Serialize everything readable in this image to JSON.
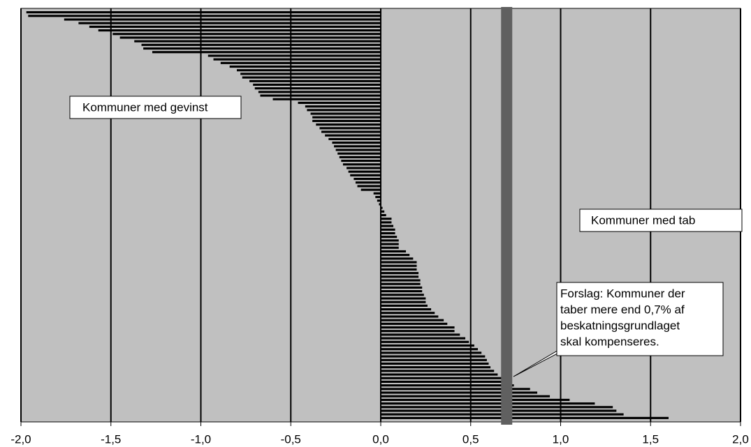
{
  "chart_data": {
    "type": "hbar",
    "values": [
      -1.97,
      -1.96,
      -1.76,
      -1.68,
      -1.62,
      -1.57,
      -1.49,
      -1.45,
      -1.37,
      -1.33,
      -1.32,
      -1.27,
      -0.96,
      -0.93,
      -0.89,
      -0.84,
      -0.8,
      -0.78,
      -0.77,
      -0.73,
      -0.71,
      -0.7,
      -0.68,
      -0.67,
      -0.6,
      -0.46,
      -0.42,
      -0.41,
      -0.39,
      -0.38,
      -0.38,
      -0.36,
      -0.34,
      -0.33,
      -0.31,
      -0.29,
      -0.27,
      -0.26,
      -0.25,
      -0.24,
      -0.23,
      -0.22,
      -0.21,
      -0.19,
      -0.18,
      -0.17,
      -0.15,
      -0.14,
      -0.13,
      -0.11,
      -0.04,
      -0.03,
      -0.02,
      -0.01,
      0.01,
      0.02,
      0.03,
      0.06,
      0.06,
      0.07,
      0.08,
      0.08,
      0.09,
      0.1,
      0.1,
      0.1,
      0.14,
      0.16,
      0.18,
      0.2,
      0.2,
      0.2,
      0.21,
      0.21,
      0.22,
      0.22,
      0.23,
      0.23,
      0.24,
      0.25,
      0.25,
      0.26,
      0.28,
      0.3,
      0.32,
      0.35,
      0.37,
      0.41,
      0.41,
      0.44,
      0.47,
      0.49,
      0.52,
      0.54,
      0.56,
      0.58,
      0.59,
      0.6,
      0.61,
      0.63,
      0.65,
      0.68,
      0.71,
      0.74,
      0.83,
      0.87,
      0.94,
      1.05,
      1.19,
      1.29,
      1.31,
      1.35,
      1.6
    ],
    "color": "#000000",
    "background": "#c0c0c0",
    "xlim": [
      -2.0,
      2.0
    ],
    "xticks": [
      {
        "value": -2.0,
        "label": "-2,0"
      },
      {
        "value": -1.5,
        "label": "-1,5"
      },
      {
        "value": -1.0,
        "label": "-1,0"
      },
      {
        "value": -0.5,
        "label": "-0,5"
      },
      {
        "value": 0,
        "label": "0,0"
      },
      {
        "value": 0.5,
        "label": "0,5"
      },
      {
        "value": 1.0,
        "label": "1,0"
      },
      {
        "value": 1.5,
        "label": "1,5"
      },
      {
        "value": 2.0,
        "label": "2,0"
      }
    ],
    "grid": true,
    "reference_line": {
      "value": 0.7,
      "color": "#606060"
    },
    "annotations": [
      "Kommuner med gevinst",
      "Kommuner med tab"
    ],
    "callout": [
      "Forslag: Kommuner der",
      "taber mere end 0,7% af",
      "beskatningsgrundlaget",
      "skal kompenseres."
    ]
  }
}
